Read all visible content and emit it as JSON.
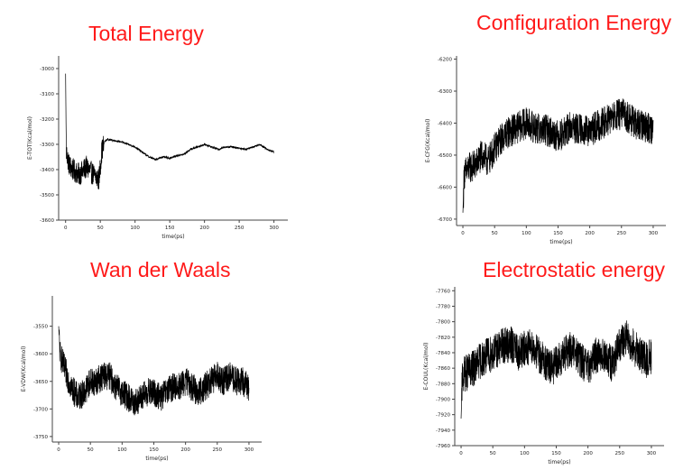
{
  "chart_data": [
    {
      "type": "line",
      "title": "Total Energy",
      "xlabel": "time(ps)",
      "ylabel": "E-TOT(Kcal/mol)",
      "xlim": [
        -10,
        320
      ],
      "ylim": [
        -3600,
        -2950
      ],
      "xticks": [
        0,
        50,
        100,
        150,
        200,
        250,
        300
      ],
      "yticks": [
        -3600,
        -3500,
        -3400,
        -3300,
        -3200,
        -3100,
        -3000
      ],
      "x": [
        0,
        1,
        5,
        10,
        20,
        30,
        40,
        48,
        52,
        56,
        60,
        70,
        80,
        90,
        100,
        110,
        120,
        130,
        140,
        150,
        160,
        170,
        180,
        190,
        200,
        210,
        220,
        230,
        240,
        250,
        260,
        270,
        280,
        290,
        300
      ],
      "series": [
        {
          "values": [
            -3020,
            -3330,
            -3380,
            -3400,
            -3420,
            -3390,
            -3420,
            -3440,
            -3330,
            -3290,
            -3280,
            -3285,
            -3290,
            -3300,
            -3310,
            -3330,
            -3350,
            -3360,
            -3350,
            -3355,
            -3345,
            -3340,
            -3320,
            -3310,
            -3300,
            -3310,
            -3320,
            -3310,
            -3310,
            -3315,
            -3320,
            -3310,
            -3300,
            -3320,
            -3330
          ]
        }
      ]
    },
    {
      "type": "line",
      "title": "Configuration Energy",
      "xlabel": "time(ps)",
      "ylabel": "E-CFG(Kcal/mol)",
      "xlim": [
        -10,
        320
      ],
      "ylim": [
        -6720,
        -6190
      ],
      "xticks": [
        0,
        50,
        100,
        150,
        200,
        250,
        300
      ],
      "yticks": [
        -6700,
        -6600,
        -6500,
        -6400,
        -6300,
        -6200
      ],
      "x": [
        0,
        2,
        10,
        20,
        30,
        40,
        50,
        60,
        70,
        80,
        90,
        100,
        110,
        120,
        130,
        140,
        150,
        160,
        170,
        180,
        190,
        200,
        210,
        220,
        230,
        240,
        250,
        260,
        270,
        280,
        290,
        300
      ],
      "series": [
        {
          "values": [
            -6680,
            -6560,
            -6540,
            -6530,
            -6500,
            -6520,
            -6480,
            -6450,
            -6430,
            -6420,
            -6410,
            -6400,
            -6410,
            -6420,
            -6420,
            -6430,
            -6440,
            -6430,
            -6410,
            -6420,
            -6420,
            -6430,
            -6410,
            -6400,
            -6390,
            -6380,
            -6370,
            -6380,
            -6400,
            -6410,
            -6410,
            -6420
          ]
        }
      ]
    },
    {
      "type": "line",
      "title": "Wan der Waals",
      "xlabel": "time(ps)",
      "ylabel": "E-VDW(Kcal/mol)",
      "xlim": [
        -10,
        320
      ],
      "ylim": [
        -3760,
        -3495
      ],
      "xticks": [
        0,
        50,
        100,
        150,
        200,
        250,
        300
      ],
      "yticks": [
        -3750,
        -3700,
        -3650,
        -3600,
        -3550
      ],
      "x": [
        0,
        2,
        10,
        20,
        30,
        40,
        50,
        60,
        70,
        80,
        90,
        100,
        110,
        120,
        130,
        140,
        150,
        160,
        170,
        180,
        190,
        200,
        210,
        220,
        230,
        240,
        250,
        260,
        270,
        280,
        290,
        300
      ],
      "series": [
        {
          "values": [
            -3550,
            -3600,
            -3630,
            -3660,
            -3680,
            -3670,
            -3650,
            -3650,
            -3640,
            -3640,
            -3660,
            -3670,
            -3680,
            -3690,
            -3680,
            -3670,
            -3670,
            -3680,
            -3670,
            -3660,
            -3660,
            -3650,
            -3660,
            -3670,
            -3660,
            -3650,
            -3640,
            -3650,
            -3640,
            -3650,
            -3650,
            -3660
          ]
        }
      ]
    },
    {
      "type": "line",
      "title": "Electrostatic energy",
      "xlabel": "time(ps)",
      "ylabel": "E-COUL(Kcal/mol)",
      "xlim": [
        -10,
        320
      ],
      "ylim": [
        -7960,
        -7755
      ],
      "xticks": [
        0,
        50,
        100,
        150,
        200,
        250,
        300
      ],
      "yticks": [
        -7960,
        -7940,
        -7920,
        -7900,
        -7880,
        -7860,
        -7840,
        -7820,
        -7800,
        -7780,
        -7760
      ],
      "x": [
        0,
        2,
        10,
        20,
        30,
        40,
        50,
        60,
        70,
        80,
        90,
        100,
        110,
        120,
        130,
        140,
        150,
        160,
        170,
        180,
        190,
        200,
        210,
        220,
        230,
        240,
        250,
        260,
        270,
        280,
        290,
        300
      ],
      "series": [
        {
          "values": [
            -7925,
            -7870,
            -7865,
            -7860,
            -7850,
            -7845,
            -7840,
            -7835,
            -7830,
            -7830,
            -7840,
            -7835,
            -7830,
            -7840,
            -7850,
            -7860,
            -7855,
            -7845,
            -7835,
            -7840,
            -7850,
            -7860,
            -7845,
            -7840,
            -7850,
            -7855,
            -7830,
            -7820,
            -7830,
            -7840,
            -7850,
            -7845
          ]
        }
      ]
    }
  ]
}
